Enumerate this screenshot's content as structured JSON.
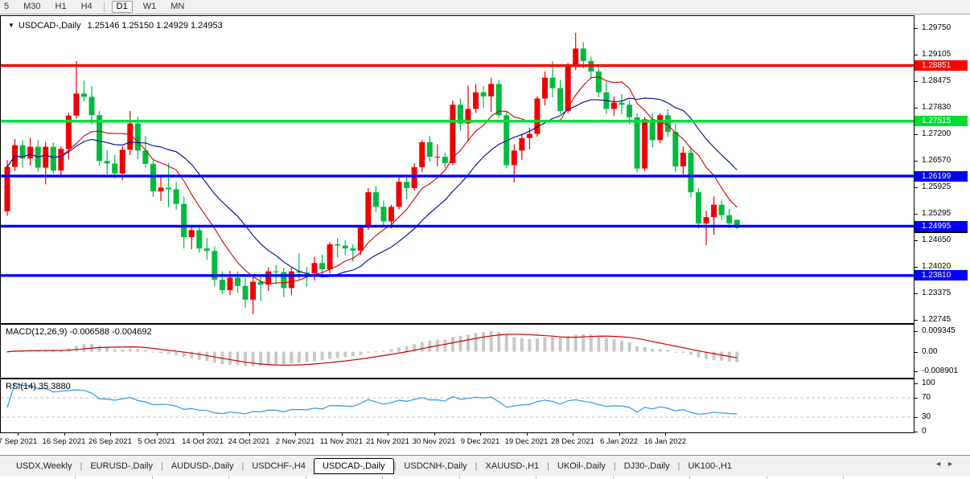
{
  "toolbar": {
    "buttons": [
      "5",
      "M30",
      "H1",
      "H4",
      "D1",
      "W1",
      "MN"
    ],
    "active": "D1",
    "separator_after": "H4"
  },
  "icons": {
    "symbol_dropdown": "▼",
    "tab_scroll_left": "◄",
    "tab_scroll_right": "►"
  },
  "chart": {
    "symbol_label": "USDCAD-,Daily",
    "ohlc_label": "1.25146 1.25150 1.24929 1.24953",
    "current_price_label": "1.24953",
    "current_price": 1.24953
  },
  "macd": {
    "name": "MACD(12,26,9)",
    "values": "-0.006588 -0.004692"
  },
  "rsi": {
    "name": "RSI(14)",
    "value": "35.3880"
  },
  "tabs": {
    "items": [
      "USDX,Weekly",
      "EURUSD-,Daily",
      "AUDUSD-,Daily",
      "USDCHF-,H4",
      "USDCAD-,Daily",
      "USDCNH-,Daily",
      "XAUUSD-,H1",
      "UKOil-,Daily",
      "DJ30-,Daily",
      "UK100-,H1"
    ],
    "active_index": 4
  },
  "colors": {
    "bull": "#ee0000",
    "bear": "#00ba40",
    "level_red": "#ff0000",
    "level_green": "#00dd33",
    "level_blue": "#0000ff",
    "ma_fast": "#cc0000",
    "ma_slow": "#000099",
    "macd_hist": "#c8c8c8",
    "macd_signal": "#cc0000",
    "rsi_line": "#3e9fe6",
    "current_badge": "#000000"
  },
  "chart_data": {
    "type": "candlestick",
    "symbol": "USDCAD",
    "timeframe": "Daily",
    "current_bar": {
      "open": 1.25146,
      "high": 1.2515,
      "low": 1.24929,
      "close": 1.24953
    },
    "price_max": 1.2975,
    "price_min": 1.22745,
    "y_axis_ticks": [
      "1.29750",
      "1.29105",
      "1.28475",
      "1.27830",
      "1.27200",
      "1.26570",
      "1.25925",
      "1.25295",
      "1.24650",
      "1.24020",
      "1.23375",
      "1.22745"
    ],
    "x_axis_labels": [
      "7 Sep 2021",
      "16 Sep 2021",
      "26 Sep 2021",
      "5 Oct 2021",
      "14 Oct 2021",
      "24 Oct 2021",
      "2 Nov 2021",
      "11 Nov 2021",
      "21 Nov 2021",
      "30 Nov 2021",
      "9 Dec 2021",
      "19 Dec 2021",
      "28 Dec 2021",
      "6 Jan 2022",
      "16 Jan 2022"
    ],
    "levels": [
      {
        "label": "1.28851",
        "price": 1.28851,
        "color_key": "level_red"
      },
      {
        "label": "1.27515",
        "price": 1.27515,
        "color_key": "level_green"
      },
      {
        "label": "1.26199",
        "price": 1.26199,
        "color_key": "level_blue"
      },
      {
        "label": "1.24995",
        "price": 1.24995,
        "color_key": "level_blue"
      },
      {
        "label": "1.23810",
        "price": 1.2381,
        "color_key": "level_blue"
      }
    ],
    "moving_averages": [
      {
        "name": "ma-fast",
        "period": 8,
        "color_key": "ma_fast"
      },
      {
        "name": "ma-slow",
        "period": 16,
        "color_key": "ma_slow"
      }
    ],
    "indicators": {
      "macd": {
        "label": "MACD(12,26,9)",
        "main": -0.006588,
        "signal": -0.004692,
        "axis_labels": [
          "0.009345",
          "0.00",
          "-0.008901"
        ],
        "scale_max": 0.009345,
        "scale_min": -0.008901
      },
      "rsi": {
        "label": "RSI(14)",
        "value": 35.388,
        "period": 14,
        "axis_labels": [
          "100",
          "70",
          "30",
          "0"
        ],
        "axis_values": [
          100,
          70,
          30,
          0
        ],
        "bands": [
          70,
          30
        ]
      }
    },
    "candles": [
      [
        "2021-09-07",
        1.2535,
        1.2658,
        1.2524,
        1.2642
      ],
      [
        "2021-09-08",
        1.2642,
        1.2709,
        1.2632,
        1.2694
      ],
      [
        "2021-09-09",
        1.2694,
        1.2706,
        1.264,
        1.2662
      ],
      [
        "2021-09-10",
        1.2662,
        1.2712,
        1.2645,
        1.269
      ],
      [
        "2021-09-13",
        1.269,
        1.2706,
        1.263,
        1.264
      ],
      [
        "2021-09-14",
        1.264,
        1.2702,
        1.26,
        1.269
      ],
      [
        "2021-09-15",
        1.269,
        1.27,
        1.2626,
        1.2633
      ],
      [
        "2021-09-16",
        1.2633,
        1.2691,
        1.262,
        1.2685
      ],
      [
        "2021-09-17",
        1.2685,
        1.2772,
        1.266,
        1.2765
      ],
      [
        "2021-09-20",
        1.2765,
        1.2896,
        1.2758,
        1.2818
      ],
      [
        "2021-09-21",
        1.2818,
        1.2849,
        1.2799,
        1.281
      ],
      [
        "2021-09-22",
        1.281,
        1.2836,
        1.2744,
        1.2766
      ],
      [
        "2021-09-23",
        1.2766,
        1.2776,
        1.2644,
        1.2656
      ],
      [
        "2021-09-24",
        1.2656,
        1.2682,
        1.2624,
        1.265
      ],
      [
        "2021-09-27",
        1.265,
        1.2671,
        1.2614,
        1.2626
      ],
      [
        "2021-09-28",
        1.2626,
        1.2691,
        1.261,
        1.2683
      ],
      [
        "2021-09-29",
        1.2683,
        1.2776,
        1.267,
        1.2746
      ],
      [
        "2021-09-30",
        1.2746,
        1.2762,
        1.266,
        1.2681
      ],
      [
        "2021-10-01",
        1.2681,
        1.2716,
        1.264,
        1.2649
      ],
      [
        "2021-10-04",
        1.2649,
        1.2656,
        1.257,
        1.2583
      ],
      [
        "2021-10-05",
        1.2583,
        1.2621,
        1.256,
        1.2592
      ],
      [
        "2021-10-06",
        1.2592,
        1.2651,
        1.2545,
        1.2588
      ],
      [
        "2021-10-07",
        1.2588,
        1.2606,
        1.254,
        1.2553
      ],
      [
        "2021-10-08",
        1.2553,
        1.2571,
        1.2446,
        1.2473
      ],
      [
        "2021-10-11",
        1.2473,
        1.2501,
        1.2444,
        1.249
      ],
      [
        "2021-10-12",
        1.249,
        1.2503,
        1.2436,
        1.2446
      ],
      [
        "2021-10-13",
        1.2446,
        1.2471,
        1.2419,
        1.244
      ],
      [
        "2021-10-14",
        1.244,
        1.2451,
        1.2355,
        1.2371
      ],
      [
        "2021-10-15",
        1.2371,
        1.2391,
        1.2336,
        1.2346
      ],
      [
        "2021-10-18",
        1.2346,
        1.2392,
        1.2334,
        1.2376
      ],
      [
        "2021-10-19",
        1.2376,
        1.2391,
        1.2339,
        1.2356
      ],
      [
        "2021-10-20",
        1.2356,
        1.2376,
        1.2304,
        1.2323
      ],
      [
        "2021-10-21",
        1.2323,
        1.2376,
        1.2288,
        1.2366
      ],
      [
        "2021-10-22",
        1.2366,
        1.2381,
        1.232,
        1.2359
      ],
      [
        "2021-10-25",
        1.2359,
        1.2401,
        1.2344,
        1.2391
      ],
      [
        "2021-10-26",
        1.2391,
        1.2406,
        1.236,
        1.2389
      ],
      [
        "2021-10-27",
        1.2389,
        1.2399,
        1.2329,
        1.2351
      ],
      [
        "2021-10-28",
        1.2351,
        1.2399,
        1.2334,
        1.2391
      ],
      [
        "2021-10-29",
        1.2391,
        1.2434,
        1.237,
        1.2388
      ],
      [
        "2021-11-01",
        1.2388,
        1.2401,
        1.2354,
        1.2386
      ],
      [
        "2021-11-02",
        1.2386,
        1.2426,
        1.237,
        1.2411
      ],
      [
        "2021-11-03",
        1.2411,
        1.2431,
        1.2379,
        1.2396
      ],
      [
        "2021-11-04",
        1.2396,
        1.2461,
        1.2386,
        1.2456
      ],
      [
        "2021-11-05",
        1.2456,
        1.2471,
        1.2424,
        1.2453
      ],
      [
        "2021-11-08",
        1.2453,
        1.2466,
        1.243,
        1.2446
      ],
      [
        "2021-11-09",
        1.2446,
        1.2456,
        1.2414,
        1.2441
      ],
      [
        "2021-11-10",
        1.2441,
        1.2501,
        1.243,
        1.2496
      ],
      [
        "2021-11-11",
        1.2496,
        1.2591,
        1.249,
        1.2581
      ],
      [
        "2021-11-12",
        1.2581,
        1.2596,
        1.2534,
        1.2546
      ],
      [
        "2021-11-15",
        1.2546,
        1.2561,
        1.25,
        1.2511
      ],
      [
        "2021-11-16",
        1.2511,
        1.2551,
        1.2494,
        1.2546
      ],
      [
        "2021-11-17",
        1.2546,
        1.2616,
        1.254,
        1.2606
      ],
      [
        "2021-11-18",
        1.2606,
        1.2621,
        1.2564,
        1.2591
      ],
      [
        "2021-11-19",
        1.2591,
        1.2651,
        1.2584,
        1.2641
      ],
      [
        "2021-11-22",
        1.2641,
        1.2706,
        1.2629,
        1.2701
      ],
      [
        "2021-11-23",
        1.2701,
        1.2716,
        1.2654,
        1.2666
      ],
      [
        "2021-11-24",
        1.2666,
        1.2696,
        1.2644,
        1.2666
      ],
      [
        "2021-11-25",
        1.2666,
        1.2676,
        1.2639,
        1.2651
      ],
      [
        "2021-11-26",
        1.2651,
        1.2801,
        1.2646,
        1.2791
      ],
      [
        "2021-11-29",
        1.2791,
        1.2806,
        1.2729,
        1.2746
      ],
      [
        "2021-11-30",
        1.2746,
        1.2837,
        1.2704,
        1.2781
      ],
      [
        "2021-12-01",
        1.2781,
        1.2841,
        1.2771,
        1.2821
      ],
      [
        "2021-12-02",
        1.2821,
        1.2836,
        1.2784,
        1.2811
      ],
      [
        "2021-12-03",
        1.2811,
        1.2856,
        1.2774,
        1.2841
      ],
      [
        "2021-12-06",
        1.2841,
        1.2851,
        1.2759,
        1.2766
      ],
      [
        "2021-12-07",
        1.2766,
        1.2776,
        1.2639,
        1.2646
      ],
      [
        "2021-12-08",
        1.2646,
        1.2696,
        1.2604,
        1.2681
      ],
      [
        "2021-12-09",
        1.2681,
        1.2721,
        1.2659,
        1.2711
      ],
      [
        "2021-12-10",
        1.2711,
        1.2736,
        1.2684,
        1.2721
      ],
      [
        "2021-12-13",
        1.2721,
        1.2811,
        1.2714,
        1.2806
      ],
      [
        "2021-12-14",
        1.2806,
        1.2871,
        1.2789,
        1.2856
      ],
      [
        "2021-12-15",
        1.2856,
        1.2896,
        1.2809,
        1.2831
      ],
      [
        "2021-12-16",
        1.2831,
        1.2851,
        1.2769,
        1.2776
      ],
      [
        "2021-12-17",
        1.2776,
        1.2891,
        1.2771,
        1.2886
      ],
      [
        "2021-12-20",
        1.2886,
        1.2964,
        1.2874,
        1.2926
      ],
      [
        "2021-12-21",
        1.2926,
        1.2941,
        1.2879,
        1.2896
      ],
      [
        "2021-12-22",
        1.2896,
        1.2906,
        1.2854,
        1.2871
      ],
      [
        "2021-12-23",
        1.2871,
        1.2886,
        1.2809,
        1.2821
      ],
      [
        "2021-12-27",
        1.2821,
        1.2846,
        1.2769,
        1.2781
      ],
      [
        "2021-12-28",
        1.2781,
        1.2811,
        1.2764,
        1.2796
      ],
      [
        "2021-12-29",
        1.2796,
        1.2816,
        1.2769,
        1.2791
      ],
      [
        "2021-12-30",
        1.2791,
        1.2801,
        1.2744,
        1.2761
      ],
      [
        "2021-12-31",
        1.2761,
        1.2771,
        1.2629,
        1.2638
      ],
      [
        "2022-01-03",
        1.2638,
        1.2761,
        1.2632,
        1.2756
      ],
      [
        "2022-01-04",
        1.2756,
        1.2771,
        1.2689,
        1.2706
      ],
      [
        "2022-01-05",
        1.2706,
        1.2771,
        1.2699,
        1.2766
      ],
      [
        "2022-01-06",
        1.2766,
        1.2781,
        1.2714,
        1.2726
      ],
      [
        "2022-01-07",
        1.2726,
        1.2746,
        1.2629,
        1.2643
      ],
      [
        "2022-01-10",
        1.2643,
        1.2691,
        1.2624,
        1.2676
      ],
      [
        "2022-01-11",
        1.2676,
        1.2686,
        1.2569,
        1.2581
      ],
      [
        "2022-01-12",
        1.2581,
        1.2591,
        1.2494,
        1.2506
      ],
      [
        "2022-01-13",
        1.2506,
        1.2536,
        1.2454,
        1.2521
      ],
      [
        "2022-01-14",
        1.2521,
        1.2571,
        1.2479,
        1.2551
      ],
      [
        "2022-01-17",
        1.2551,
        1.2561,
        1.2514,
        1.2526
      ],
      [
        "2022-01-18",
        1.2526,
        1.2541,
        1.2494,
        1.2506
      ],
      [
        "2022-01-19",
        1.25146,
        1.2515,
        1.24929,
        1.24953
      ]
    ]
  }
}
